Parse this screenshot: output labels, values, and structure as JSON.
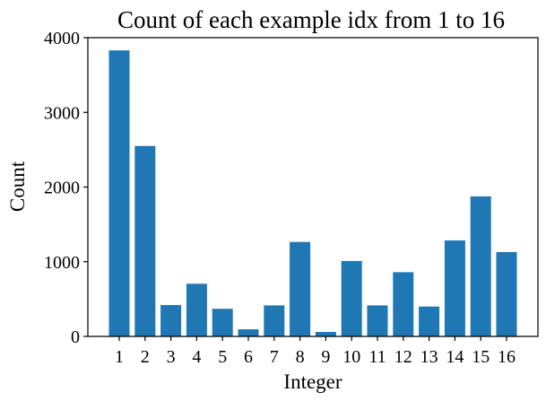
{
  "chart_data": {
    "type": "bar",
    "title": "Count of each example idx from 1 to 16",
    "xlabel": "Integer",
    "ylabel": "Count",
    "categories": [
      "1",
      "2",
      "3",
      "4",
      "5",
      "6",
      "7",
      "8",
      "9",
      "10",
      "11",
      "12",
      "13",
      "14",
      "15",
      "16"
    ],
    "values": [
      3830,
      2550,
      420,
      705,
      370,
      95,
      415,
      1265,
      60,
      1010,
      415,
      860,
      400,
      1285,
      1875,
      1130
    ],
    "ylim": [
      0,
      4000
    ],
    "yticks": [
      0,
      1000,
      2000,
      3000,
      4000
    ],
    "bar_color": "#1f77b4",
    "grid": false,
    "legend": "none"
  }
}
